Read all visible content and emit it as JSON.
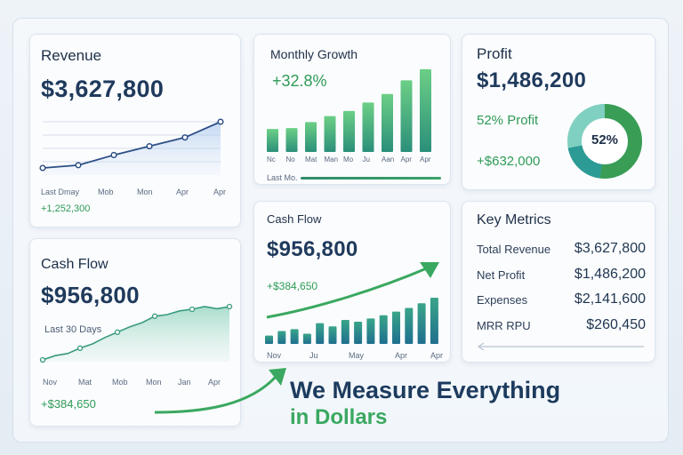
{
  "revenue": {
    "title": "Revenue",
    "value": "$3,627,800",
    "ticks": [
      "Last Dmay",
      "Mob",
      "Mon",
      "Apr",
      "Apr"
    ],
    "footer": "+1,252,300",
    "points": [
      0.0,
      0.06,
      0.28,
      0.47,
      0.66,
      1.0
    ]
  },
  "growth": {
    "title": "Monthly Growth",
    "value": "+32.8%",
    "ticks": [
      "Nc",
      "No",
      "Mat",
      "Man",
      "Mo",
      "Ju",
      "Aan",
      "Apr",
      "Apr"
    ],
    "footer": "Last Mo.",
    "bars": [
      0.27,
      0.28,
      0.35,
      0.42,
      0.48,
      0.58,
      0.68,
      0.84,
      0.97
    ]
  },
  "profit": {
    "title": "Profit",
    "value": "$1,486,200",
    "percent_label": "52% Profit",
    "delta": "+$632,000",
    "donut_label": "52%",
    "donut_fraction": 0.52
  },
  "cashflow_left": {
    "title": "Cash Flow",
    "value": "$956,800",
    "period": "Last 30 Days",
    "ticks": [
      "Nov",
      "Mat",
      "Mob",
      "Mon",
      "Jan",
      "Apr"
    ],
    "footer": "+$384,650",
    "points": [
      0.0,
      0.08,
      0.12,
      0.22,
      0.3,
      0.42,
      0.52,
      0.62,
      0.7,
      0.82,
      0.85,
      0.92,
      0.95,
      1.0,
      0.96,
      1.0
    ]
  },
  "cashflow_center": {
    "title": "Cash Flow",
    "value": "$956,800",
    "delta": "+$384,650",
    "ticks": [
      "Nov",
      "Ju",
      "May",
      "Apr",
      "Apr"
    ],
    "bars": [
      0.18,
      0.28,
      0.32,
      0.22,
      0.45,
      0.38,
      0.52,
      0.48,
      0.55,
      0.62,
      0.7,
      0.78,
      0.88,
      1.0
    ]
  },
  "key_metrics": {
    "title": "Key Metrics",
    "rows": [
      {
        "label": "Total Revenue",
        "value": "$3,627,800"
      },
      {
        "label": "Net Profit",
        "value": "$1,486,200"
      },
      {
        "label": "Expenses",
        "value": "$2,141,600"
      },
      {
        "label": "MRR RPU",
        "value": "$260,450"
      }
    ]
  },
  "tagline": {
    "line1": "We Measure Everything",
    "line2": "in Dollars"
  },
  "colors": {
    "navy": "#1f3a5c",
    "green": "#2f9b57",
    "teal": "#2a8c8a",
    "line": "#2d4f86"
  }
}
